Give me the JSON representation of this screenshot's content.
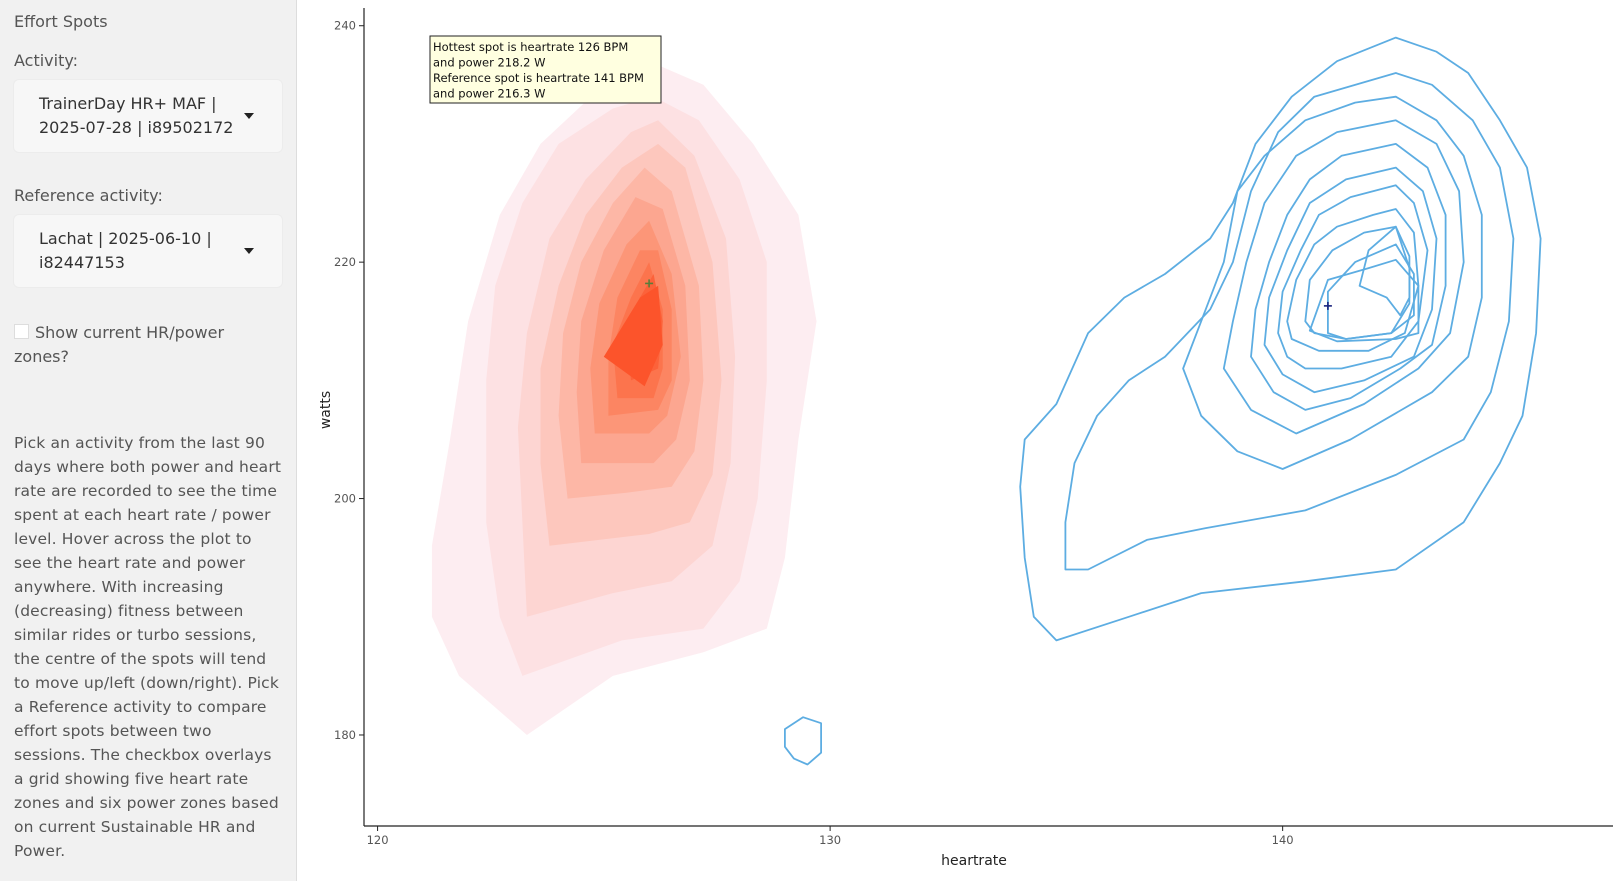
{
  "sidebar": {
    "title": "Effort Spots",
    "activity_label": "Activity:",
    "activity_value": "TrainerDay HR+ MAF | 2025-07-28 | i89502172",
    "reference_label": "Reference activity:",
    "reference_value": "Lachat | 2025-06-10 | i82447153",
    "zones_checkbox_label": "Show current HR/power zones?",
    "zones_checked": false,
    "help_text": "Pick an activity from the last 90 days where both power and heart rate are recorded to see the time spent at each heart rate / power level. Hover across the plot to see the heart rate and power anywhere. With increasing (decreasing) fitness between similar rides or turbo sessions, the centre of the spots will tend to move up/left (down/right). Pick a Reference activity to compare effort spots between two sessions. The checkbox overlays a grid showing five heart rate zones and six power zones based on current Sustainable HR and Power."
  },
  "tooltip": {
    "lines": [
      "Hottest spot is heartrate 126 BPM",
      "and power 218.2 W",
      "Reference spot is heartrate 141 BPM",
      "and power 216.3 W"
    ]
  },
  "chart_data": {
    "type": "contour",
    "xlabel": "heartrate",
    "ylabel": "watts",
    "xlim": [
      119.7,
      147.3
    ],
    "ylim": [
      172.3,
      241.5
    ],
    "x_ticks": [
      120,
      130,
      140
    ],
    "y_ticks": [
      180,
      200,
      220,
      240
    ],
    "colors": {
      "density_fill": [
        "#fdedf1",
        "#fde1e3",
        "#fdd5d2",
        "#fdc7bd",
        "#fdb7a6",
        "#fca690",
        "#fc9678",
        "#fc8562",
        "#fc744d",
        "#fc623a",
        "#fc542b"
      ],
      "reference_line": "#5dade2",
      "hot_marker": "#5a7d3a",
      "ref_marker": "#1a237e"
    },
    "hottest_spot": {
      "x": 126,
      "y": 218.2
    },
    "reference_spot": {
      "x": 141,
      "y": 216.3
    },
    "activity_density_levels": [
      [
        [
          123.3,
          180
        ],
        [
          121.8,
          185
        ],
        [
          121.2,
          190
        ],
        [
          121.2,
          196
        ],
        [
          121.6,
          205
        ],
        [
          122.0,
          215
        ],
        [
          122.7,
          224
        ],
        [
          123.6,
          230
        ],
        [
          125.0,
          235
        ],
        [
          126.0,
          237
        ],
        [
          127.2,
          235
        ],
        [
          128.3,
          230
        ],
        [
          129.3,
          224
        ],
        [
          129.7,
          215
        ],
        [
          129.3,
          205
        ],
        [
          129.0,
          195
        ],
        [
          128.6,
          189
        ],
        [
          127.2,
          187
        ],
        [
          125.2,
          185
        ]
      ],
      [
        [
          123.2,
          185
        ],
        [
          122.7,
          190
        ],
        [
          122.4,
          198
        ],
        [
          122.4,
          210
        ],
        [
          122.6,
          218
        ],
        [
          123.2,
          225
        ],
        [
          124.0,
          230
        ],
        [
          125.2,
          233
        ],
        [
          126.1,
          234
        ],
        [
          127.1,
          232
        ],
        [
          128.0,
          227
        ],
        [
          128.6,
          220
        ],
        [
          128.6,
          210
        ],
        [
          128.4,
          200
        ],
        [
          128.0,
          193
        ],
        [
          127.2,
          189
        ],
        [
          125.4,
          188
        ]
      ],
      [
        [
          123.3,
          190
        ],
        [
          123.2,
          198
        ],
        [
          123.1,
          206
        ],
        [
          123.3,
          214
        ],
        [
          123.8,
          222
        ],
        [
          124.6,
          227
        ],
        [
          125.6,
          231
        ],
        [
          126.2,
          232
        ],
        [
          127.0,
          229
        ],
        [
          127.7,
          222
        ],
        [
          127.9,
          212
        ],
        [
          127.8,
          203
        ],
        [
          127.4,
          196
        ],
        [
          126.5,
          193
        ],
        [
          125.2,
          192
        ]
      ],
      [
        [
          123.8,
          196
        ],
        [
          123.6,
          203
        ],
        [
          123.6,
          211
        ],
        [
          124.0,
          218
        ],
        [
          124.6,
          224
        ],
        [
          125.4,
          228
        ],
        [
          126.2,
          230
        ],
        [
          126.8,
          228
        ],
        [
          127.4,
          220
        ],
        [
          127.6,
          210
        ],
        [
          127.4,
          202
        ],
        [
          126.9,
          198
        ],
        [
          126.0,
          197
        ]
      ],
      [
        [
          124.2,
          200
        ],
        [
          124.0,
          207
        ],
        [
          124.1,
          214
        ],
        [
          124.5,
          220
        ],
        [
          125.2,
          225
        ],
        [
          125.9,
          228
        ],
        [
          126.5,
          226
        ],
        [
          127.1,
          218
        ],
        [
          127.2,
          210
        ],
        [
          127.0,
          204
        ],
        [
          126.5,
          201
        ],
        [
          125.5,
          200.5
        ]
      ],
      [
        [
          124.5,
          203
        ],
        [
          124.4,
          209
        ],
        [
          124.5,
          215
        ],
        [
          125.0,
          221
        ],
        [
          125.7,
          225.5
        ],
        [
          126.3,
          224.5
        ],
        [
          126.8,
          218
        ],
        [
          126.9,
          210
        ],
        [
          126.6,
          205
        ],
        [
          126.1,
          203
        ]
      ],
      [
        [
          124.8,
          205.5
        ],
        [
          124.7,
          211
        ],
        [
          124.9,
          216.5
        ],
        [
          125.5,
          221.5
        ],
        [
          126.0,
          223.5
        ],
        [
          126.5,
          219
        ],
        [
          126.7,
          212
        ],
        [
          126.4,
          207
        ],
        [
          126.0,
          205.5
        ]
      ],
      [
        [
          125.1,
          207
        ],
        [
          125.1,
          212
        ],
        [
          125.3,
          217
        ],
        [
          125.8,
          221
        ],
        [
          126.2,
          221
        ],
        [
          126.5,
          216
        ],
        [
          126.5,
          210
        ],
        [
          126.2,
          207.5
        ]
      ],
      [
        [
          125.3,
          208.5
        ],
        [
          125.2,
          213
        ],
        [
          125.6,
          217
        ],
        [
          126.0,
          220
        ],
        [
          126.3,
          216
        ],
        [
          126.3,
          211
        ],
        [
          126.1,
          208.5
        ]
      ],
      [
        [
          125.6,
          210
        ],
        [
          125.5,
          213.5
        ],
        [
          125.8,
          217
        ],
        [
          126.1,
          219
        ],
        [
          126.3,
          215
        ],
        [
          126.2,
          211
        ]
      ],
      [
        [
          125.0,
          212
        ],
        [
          125.8,
          217
        ],
        [
          126.2,
          218
        ],
        [
          126.3,
          213
        ],
        [
          125.9,
          209.5
        ]
      ]
    ],
    "reference_density_levels": [
      [
        [
          134.2,
          201
        ],
        [
          134.3,
          205
        ],
        [
          135.0,
          208
        ],
        [
          135.7,
          214
        ],
        [
          136.5,
          217
        ],
        [
          137.4,
          219
        ],
        [
          138.4,
          222
        ],
        [
          138.9,
          225
        ],
        [
          139.4,
          230
        ],
        [
          140.2,
          234
        ],
        [
          141.2,
          237
        ],
        [
          142.5,
          239
        ],
        [
          143.4,
          237.8
        ],
        [
          144.1,
          236
        ],
        [
          144.8,
          232
        ],
        [
          145.4,
          228
        ],
        [
          145.7,
          222
        ],
        [
          145.6,
          214
        ],
        [
          145.3,
          207
        ],
        [
          144.8,
          203
        ],
        [
          144.0,
          198
        ],
        [
          142.5,
          194
        ],
        [
          140.5,
          193
        ],
        [
          138.2,
          192
        ],
        [
          136.6,
          190
        ],
        [
          135.0,
          188
        ],
        [
          134.5,
          190
        ],
        [
          134.3,
          195
        ]
      ],
      [
        [
          135.2,
          194
        ],
        [
          135.2,
          198
        ],
        [
          135.4,
          203
        ],
        [
          135.9,
          207
        ],
        [
          136.6,
          210
        ],
        [
          137.4,
          212
        ],
        [
          138.4,
          216
        ],
        [
          138.9,
          220
        ],
        [
          139.3,
          226
        ],
        [
          139.9,
          231
        ],
        [
          140.7,
          234
        ],
        [
          142.5,
          236
        ],
        [
          143.3,
          235
        ],
        [
          144.2,
          232
        ],
        [
          144.8,
          228
        ],
        [
          145.1,
          222
        ],
        [
          145.0,
          215
        ],
        [
          144.6,
          209
        ],
        [
          144.0,
          205
        ],
        [
          142.5,
          202
        ],
        [
          140.5,
          199
        ],
        [
          138.3,
          197.5
        ],
        [
          137.0,
          196.5
        ],
        [
          135.7,
          194
        ]
      ],
      [
        [
          137.8,
          211
        ],
        [
          138.3,
          216
        ],
        [
          138.7,
          220
        ],
        [
          139.0,
          226
        ],
        [
          139.6,
          229
        ],
        [
          140.5,
          232
        ],
        [
          141.6,
          233.5
        ],
        [
          142.5,
          234
        ],
        [
          143.4,
          232
        ],
        [
          144.0,
          229
        ],
        [
          144.4,
          224
        ],
        [
          144.4,
          217
        ],
        [
          144.1,
          212
        ],
        [
          143.3,
          209
        ],
        [
          141.5,
          205
        ],
        [
          140.0,
          202.5
        ],
        [
          139.0,
          204
        ],
        [
          138.2,
          207
        ]
      ],
      [
        [
          138.7,
          211
        ],
        [
          138.9,
          215
        ],
        [
          139.2,
          220
        ],
        [
          139.6,
          225
        ],
        [
          140.3,
          229
        ],
        [
          141.2,
          231
        ],
        [
          142.5,
          232
        ],
        [
          143.4,
          230
        ],
        [
          143.9,
          226
        ],
        [
          144.0,
          220
        ],
        [
          143.7,
          214
        ],
        [
          143.0,
          211
        ],
        [
          141.8,
          208
        ],
        [
          140.3,
          205.5
        ],
        [
          139.3,
          207.5
        ]
      ],
      [
        [
          139.3,
          212
        ],
        [
          139.4,
          216
        ],
        [
          139.7,
          220
        ],
        [
          140.1,
          224
        ],
        [
          140.6,
          227
        ],
        [
          141.3,
          229
        ],
        [
          142.5,
          230
        ],
        [
          143.2,
          228
        ],
        [
          143.6,
          224
        ],
        [
          143.6,
          218
        ],
        [
          143.3,
          213
        ],
        [
          142.6,
          211
        ],
        [
          141.5,
          208.5
        ],
        [
          140.5,
          207.5
        ],
        [
          139.8,
          209
        ]
      ],
      [
        [
          139.6,
          213
        ],
        [
          139.7,
          217
        ],
        [
          140.1,
          221
        ],
        [
          140.6,
          225
        ],
        [
          141.4,
          227
        ],
        [
          142.5,
          228
        ],
        [
          143.1,
          226
        ],
        [
          143.4,
          222
        ],
        [
          143.3,
          216
        ],
        [
          142.9,
          212
        ],
        [
          141.8,
          210
        ],
        [
          140.7,
          209
        ],
        [
          140.0,
          210.5
        ]
      ],
      [
        [
          139.9,
          214
        ],
        [
          140.0,
          217.5
        ],
        [
          140.4,
          221
        ],
        [
          140.8,
          224
        ],
        [
          141.5,
          225.5
        ],
        [
          142.5,
          226.5
        ],
        [
          142.9,
          225
        ],
        [
          143.2,
          221
        ],
        [
          143.0,
          215
        ],
        [
          142.4,
          212
        ],
        [
          141.3,
          211
        ],
        [
          140.5,
          211
        ],
        [
          140.1,
          212
        ]
      ],
      [
        [
          140.1,
          215
        ],
        [
          140.3,
          218.5
        ],
        [
          140.7,
          221.5
        ],
        [
          141.2,
          223
        ],
        [
          142.0,
          224
        ],
        [
          142.5,
          224.5
        ],
        [
          142.9,
          222.5
        ],
        [
          143.0,
          218
        ],
        [
          142.7,
          214
        ],
        [
          141.9,
          212.5
        ],
        [
          140.8,
          212.5
        ],
        [
          140.2,
          213.5
        ]
      ],
      [
        [
          140.5,
          215
        ],
        [
          140.6,
          218.5
        ],
        [
          141.1,
          221
        ],
        [
          141.8,
          222.5
        ],
        [
          142.5,
          223
        ],
        [
          142.8,
          220.5
        ],
        [
          142.8,
          216.5
        ],
        [
          142.4,
          214
        ],
        [
          141.4,
          213.5
        ],
        [
          140.7,
          214
        ]
      ],
      [
        [
          141.0,
          214
        ],
        [
          141.0,
          217.5
        ],
        [
          141.6,
          220
        ],
        [
          142.5,
          221.5
        ],
        [
          142.9,
          219
        ],
        [
          142.9,
          215.5
        ],
        [
          142.4,
          214
        ],
        [
          141.4,
          213.5
        ]
      ],
      [
        [
          140.6,
          214.2
        ],
        [
          141.0,
          218.5
        ],
        [
          141.9,
          219.5
        ],
        [
          142.5,
          220.2
        ],
        [
          143.0,
          218.0
        ],
        [
          143.0,
          214.0
        ],
        [
          142.5,
          213.5
        ],
        [
          141.2,
          213.3
        ]
      ],
      [
        [
          141.9,
          221
        ],
        [
          142.5,
          223
        ],
        [
          142.8,
          219.5
        ],
        [
          142.8,
          217
        ],
        [
          142.6,
          215.5
        ],
        [
          142.3,
          217
        ],
        [
          141.7,
          218
        ]
      ],
      [
        [
          129.2,
          178
        ],
        [
          129.0,
          179
        ],
        [
          129.0,
          180.5
        ],
        [
          129.4,
          181.5
        ],
        [
          129.8,
          181
        ],
        [
          129.8,
          178.5
        ],
        [
          129.5,
          177.5
        ]
      ]
    ]
  }
}
